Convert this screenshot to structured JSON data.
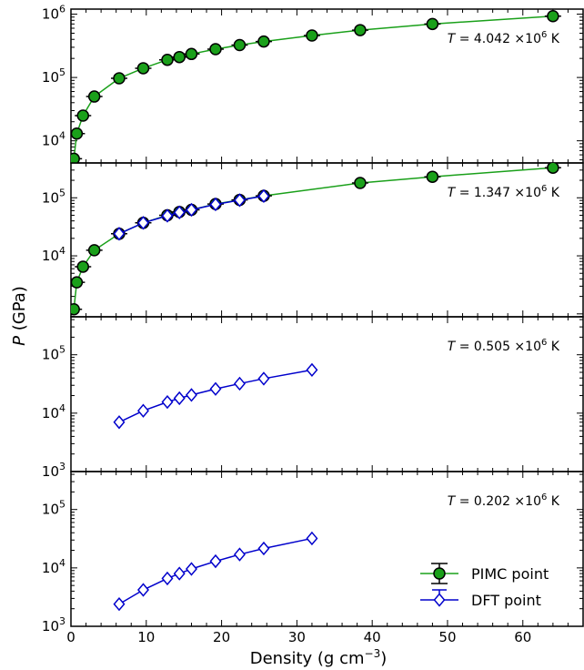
{
  "chart_data": {
    "type": "line",
    "xlabel": "Density (g cm",
    "xlabel_sup": "−3",
    "xlabel_close": ")",
    "ylabel_symbol": "P",
    "ylabel_unit": "(GPa)",
    "x_scale": "linear",
    "y_scale": "log",
    "xlim": [
      0,
      68
    ],
    "x_ticks": [
      0,
      10,
      20,
      30,
      40,
      50,
      60
    ],
    "grid": false,
    "legend_position": "bottom-right of lowest panel",
    "colors": {
      "pimc": "#1aa01a",
      "dft": "#0000cc"
    },
    "legend": [
      {
        "series": "pimc",
        "label": "PIMC point"
      },
      {
        "series": "dft",
        "label": "DFT point"
      }
    ],
    "panels": [
      {
        "temperature_label": "T = 4.042 ×10⁶ K",
        "temperature": {
          "sym": "T",
          "eq": " = 4.042 ×10",
          "sup": "6",
          "unit": " K"
        },
        "ylim_log10": [
          3.65,
          6.08
        ],
        "y_ticks": [
          {
            "exp": 4,
            "base": "10",
            "sup": "4"
          },
          {
            "exp": 5,
            "base": "10",
            "sup": "5"
          },
          {
            "exp": 6,
            "base": "10",
            "sup": "6"
          }
        ],
        "series": [
          {
            "key": "pimc",
            "name": "PIMC point",
            "x": [
              0.386,
              0.772,
              1.6,
              3.1,
              6.4,
              9.6,
              12.8,
              14.4,
              16.0,
              19.2,
              22.4,
              25.6,
              32.0,
              38.4,
              48.0,
              64.0
            ],
            "y": [
              5200,
              13000,
              25000,
              50000,
              97000,
              140000,
              190000,
              210000,
              235000,
              280000,
              325000,
              370000,
              460000,
              560000,
              700000,
              930000
            ]
          }
        ]
      },
      {
        "temperature_label": "T = 1.347 ×10⁶ K",
        "temperature": {
          "sym": "T",
          "eq": " = 1.347 ×10",
          "sup": "6",
          "unit": " K"
        },
        "ylim_log10": [
          2.95,
          5.6
        ],
        "y_ticks": [
          {
            "exp": 4,
            "base": "10",
            "sup": "4"
          },
          {
            "exp": 5,
            "base": "10",
            "sup": "5"
          }
        ],
        "series": [
          {
            "key": "pimc",
            "name": "PIMC point",
            "x": [
              0.386,
              0.772,
              1.6,
              3.1,
              6.4,
              9.6,
              12.8,
              14.4,
              16.0,
              19.2,
              22.4,
              25.6,
              38.4,
              48.0,
              64.0
            ],
            "y": [
              1200,
              3500,
              6500,
              12500,
              24000,
              37000,
              50000,
              57000,
              62000,
              78000,
              92000,
              108000,
              180000,
              230000,
              330000
            ]
          },
          {
            "key": "dft",
            "name": "DFT point",
            "x": [
              6.4,
              9.6,
              12.8,
              14.4,
              16.0,
              19.2,
              22.4,
              25.6
            ],
            "y": [
              24000,
              37000,
              49000,
              56000,
              62000,
              77000,
              91000,
              107000
            ]
          }
        ]
      },
      {
        "temperature_label": "T = 0.505 ×10⁶ K",
        "temperature": {
          "sym": "T",
          "eq": " = 0.505 ×10",
          "sup": "6",
          "unit": " K"
        },
        "ylim_log10": [
          3.0,
          5.65
        ],
        "y_ticks": [
          {
            "exp": 3,
            "base": "10",
            "sup": "3"
          },
          {
            "exp": 4,
            "base": "10",
            "sup": "4"
          },
          {
            "exp": 5,
            "base": "10",
            "sup": "5"
          }
        ],
        "series": [
          {
            "key": "dft",
            "name": "DFT point",
            "x": [
              6.4,
              9.6,
              12.8,
              14.4,
              16.0,
              19.2,
              22.4,
              25.6,
              32.0
            ],
            "y": [
              7000,
              11000,
              15500,
              18000,
              20500,
              26000,
              32000,
              39000,
              55000
            ]
          }
        ]
      },
      {
        "temperature_label": "T = 0.202 ×10⁶ K",
        "temperature": {
          "sym": "T",
          "eq": " = 0.202 ×10",
          "sup": "6",
          "unit": " K"
        },
        "ylim_log10": [
          3.0,
          5.65
        ],
        "y_ticks": [
          {
            "exp": 3,
            "base": "10",
            "sup": "3"
          },
          {
            "exp": 4,
            "base": "10",
            "sup": "4"
          },
          {
            "exp": 5,
            "base": "10",
            "sup": "5"
          }
        ],
        "series": [
          {
            "key": "dft",
            "name": "DFT point",
            "x": [
              6.4,
              9.6,
              12.8,
              14.4,
              16.0,
              19.2,
              22.4,
              25.6,
              32.0
            ],
            "y": [
              2400,
              4200,
              6600,
              8000,
              9600,
              13000,
              17000,
              21500,
              32000
            ]
          }
        ]
      }
    ]
  }
}
